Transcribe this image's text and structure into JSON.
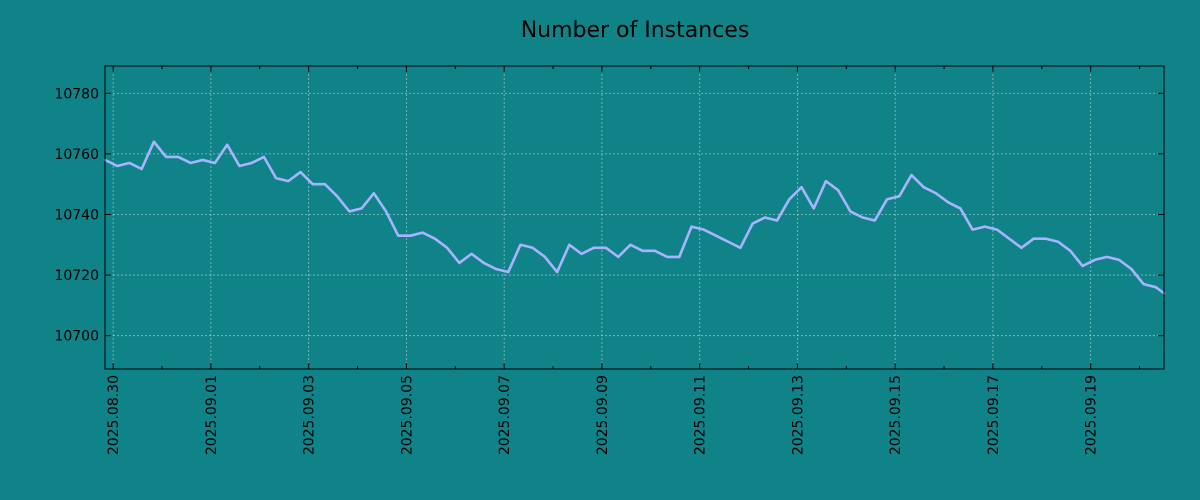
{
  "page": {
    "background": "#0f8387"
  },
  "chart_data": {
    "type": "line",
    "title": "Number of Instances",
    "xlabel": "",
    "ylabel": "",
    "x_tick_labels": [
      "2025.08.30",
      "2025.09.01",
      "2025.09.03",
      "2025.09.05",
      "2025.09.07",
      "2025.09.09",
      "2025.09.11",
      "2025.09.13",
      "2025.09.15",
      "2025.09.17",
      "2025.09.19"
    ],
    "y_ticks": [
      10700,
      10720,
      10740,
      10760,
      10780
    ],
    "ylim": [
      10689,
      10789
    ],
    "xlim": [
      "2025-08-29 20:00",
      "2025-09-20 12:00"
    ],
    "grid": true,
    "line_color": "#a8b4ff",
    "series": [
      {
        "x": [
          "2025-08-29 20:00",
          "2025-08-30 02:00",
          "2025-08-30 08:00",
          "2025-08-30 14:00",
          "2025-08-30 20:00",
          "2025-08-31 02:00",
          "2025-08-31 08:00",
          "2025-08-31 14:00",
          "2025-08-31 20:00",
          "2025-09-01 02:00",
          "2025-09-01 08:00",
          "2025-09-01 14:00",
          "2025-09-01 20:00",
          "2025-09-02 02:00",
          "2025-09-02 08:00",
          "2025-09-02 14:00",
          "2025-09-02 20:00",
          "2025-09-03 02:00",
          "2025-09-03 08:00",
          "2025-09-03 14:00",
          "2025-09-03 20:00",
          "2025-09-04 02:00",
          "2025-09-04 08:00",
          "2025-09-04 14:00",
          "2025-09-04 20:00",
          "2025-09-05 02:00",
          "2025-09-05 08:00",
          "2025-09-05 14:00",
          "2025-09-05 20:00",
          "2025-09-06 02:00",
          "2025-09-06 08:00",
          "2025-09-06 14:00",
          "2025-09-06 20:00",
          "2025-09-07 02:00",
          "2025-09-07 08:00",
          "2025-09-07 14:00",
          "2025-09-07 20:00",
          "2025-09-08 02:00",
          "2025-09-08 08:00",
          "2025-09-08 14:00",
          "2025-09-08 20:00",
          "2025-09-09 02:00",
          "2025-09-09 08:00",
          "2025-09-09 14:00",
          "2025-09-09 20:00",
          "2025-09-10 02:00",
          "2025-09-10 08:00",
          "2025-09-10 14:00",
          "2025-09-10 20:00",
          "2025-09-11 02:00",
          "2025-09-11 08:00",
          "2025-09-11 14:00",
          "2025-09-11 20:00",
          "2025-09-12 02:00",
          "2025-09-12 08:00",
          "2025-09-12 14:00",
          "2025-09-12 20:00",
          "2025-09-13 02:00",
          "2025-09-13 08:00",
          "2025-09-13 14:00",
          "2025-09-13 20:00",
          "2025-09-14 02:00",
          "2025-09-14 08:00",
          "2025-09-14 14:00",
          "2025-09-14 20:00",
          "2025-09-15 02:00",
          "2025-09-15 08:00",
          "2025-09-15 14:00",
          "2025-09-15 20:00",
          "2025-09-16 02:00",
          "2025-09-16 08:00",
          "2025-09-16 14:00",
          "2025-09-16 20:00",
          "2025-09-17 02:00",
          "2025-09-17 08:00",
          "2025-09-17 14:00",
          "2025-09-17 20:00",
          "2025-09-18 02:00",
          "2025-09-18 08:00",
          "2025-09-18 14:00",
          "2025-09-18 20:00",
          "2025-09-19 02:00",
          "2025-09-19 08:00",
          "2025-09-19 14:00",
          "2025-09-19 20:00",
          "2025-09-20 02:00",
          "2025-09-20 08:00",
          "2025-09-20 12:00"
        ],
        "y": [
          10758,
          10756,
          10757,
          10755,
          10764,
          10759,
          10759,
          10757,
          10758,
          10757,
          10763,
          10756,
          10757,
          10759,
          10752,
          10751,
          10754,
          10750,
          10750,
          10746,
          10741,
          10742,
          10747,
          10741,
          10733,
          10733,
          10734,
          10732,
          10729,
          10724,
          10727,
          10724,
          10722,
          10721,
          10730,
          10729,
          10726,
          10721,
          10730,
          10727,
          10729,
          10729,
          10726,
          10730,
          10728,
          10728,
          10726,
          10726,
          10736,
          10735,
          10733,
          10731,
          10729,
          10737,
          10739,
          10738,
          10745,
          10749,
          10742,
          10751,
          10748,
          10741,
          10739,
          10738,
          10745,
          10746,
          10753,
          10749,
          10747,
          10744,
          10742,
          10735,
          10736,
          10735,
          10732,
          10729,
          10732,
          10732,
          10731,
          10728,
          10723,
          10725,
          10726,
          10725,
          10722,
          10717,
          10716,
          10714
        ]
      }
    ]
  }
}
